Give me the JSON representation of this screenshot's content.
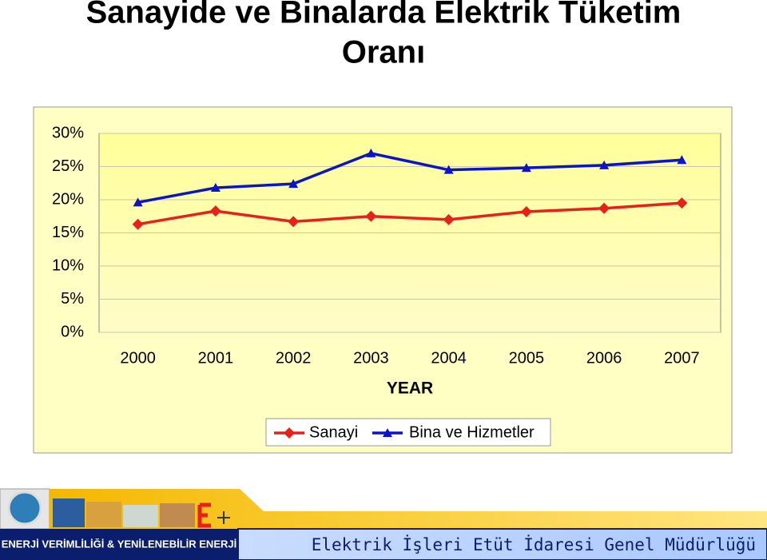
{
  "chart_data": {
    "type": "line",
    "title": "Sanayide ve Binalarda Elektrik Tüketim",
    "title_line2": "Oranı",
    "x_label": "YEAR",
    "categories": [
      "2000",
      "2001",
      "2002",
      "2003",
      "2004",
      "2005",
      "2006",
      "2007"
    ],
    "series": [
      {
        "name": "Sanayi",
        "color": "#e8201a",
        "marker": "diamond",
        "values": [
          16.3,
          18.3,
          16.7,
          17.5,
          17.0,
          18.2,
          18.7,
          19.5
        ]
      },
      {
        "name": "Bina ve Hizmetler",
        "color": "#0a14c8",
        "marker": "triangle",
        "values": [
          19.6,
          21.8,
          22.4,
          27.0,
          24.5,
          24.8,
          25.2,
          26.0
        ]
      }
    ],
    "ylim": [
      0,
      30
    ],
    "yticks": [
      {
        "value": 0,
        "label": "0%"
      },
      {
        "value": 5,
        "label": "5%"
      },
      {
        "value": 10,
        "label": "10%"
      },
      {
        "value": 15,
        "label": "15%"
      },
      {
        "value": 20,
        "label": "20%"
      },
      {
        "value": 25,
        "label": "25%"
      },
      {
        "value": 30,
        "label": "30%"
      }
    ],
    "grid": true,
    "legend": "bottom"
  },
  "footer": {
    "left": "ENERJİ VERİMLİLİĞİ & YENİLENEBİLİR ENERJİ",
    "right": "Elektrik İşleri Etüt İdaresi Genel Müdürlüğü"
  }
}
